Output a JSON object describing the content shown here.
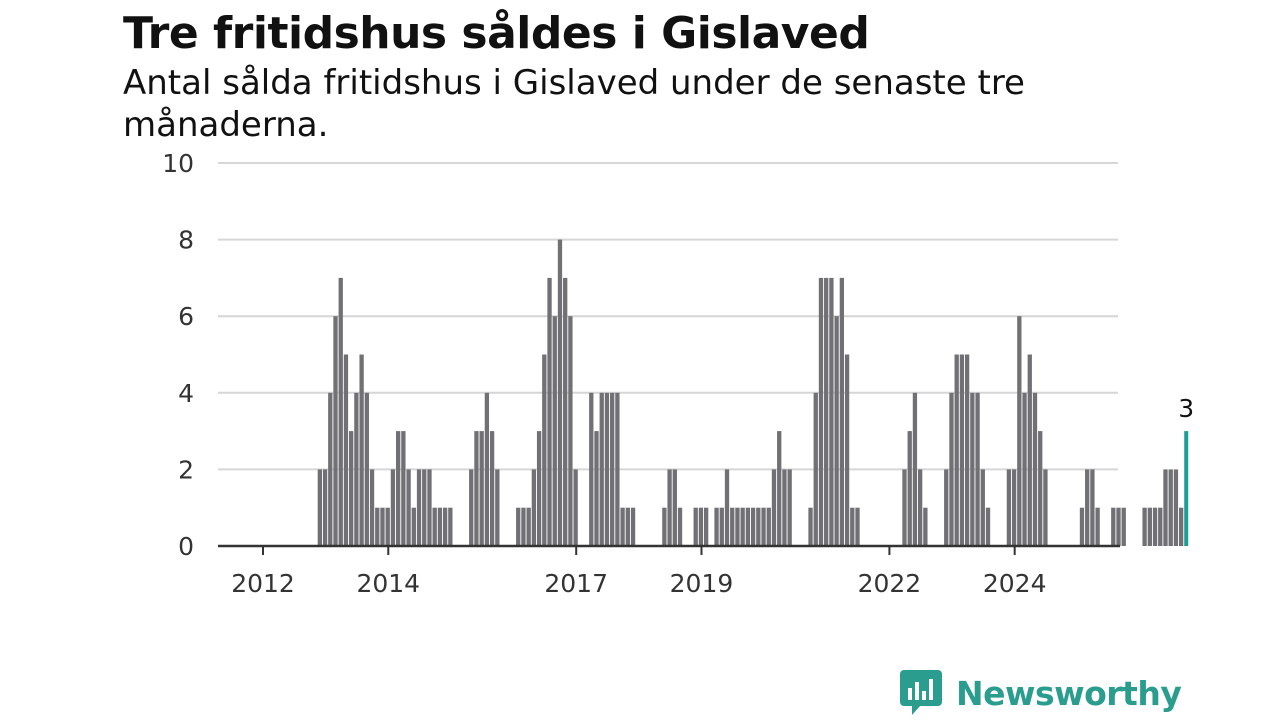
{
  "header": {
    "title": "Tre fritidshus såldes i Gislaved",
    "subtitle": "Antal sålda fritidshus i Gislaved under de senaste tre månaderna."
  },
  "brand": {
    "name": "Newsworthy",
    "color": "#2a9d8f"
  },
  "colors": {
    "bar": "#707075",
    "highlight": "#1a9e96",
    "grid": "#d6d6d6",
    "axis": "#333333"
  },
  "chart_data": {
    "type": "bar",
    "title": "Tre fritidshus såldes i Gislaved",
    "subtitle": "Antal sålda fritidshus i Gislaved under de senaste tre månaderna.",
    "xlabel": "",
    "ylabel": "",
    "ylim": [
      0,
      10
    ],
    "y_ticks": [
      0,
      2,
      4,
      6,
      8,
      10
    ],
    "x_ticks": [
      "2012",
      "2014",
      "2017",
      "2019",
      "2022",
      "2024"
    ],
    "grid": true,
    "series": [
      {
        "values": [
          0,
          0,
          0,
          0,
          0,
          0,
          0,
          0,
          0,
          0,
          2,
          2,
          4,
          6,
          7,
          5,
          3,
          4,
          5,
          4,
          2,
          1,
          1,
          1,
          2,
          3,
          3,
          2,
          1,
          2,
          2,
          2,
          1,
          1,
          1,
          1,
          0,
          0,
          0,
          2,
          3,
          3,
          4,
          3,
          2,
          0,
          0,
          0,
          1,
          1,
          1,
          2,
          3,
          5,
          7,
          6,
          8,
          7,
          6,
          2,
          0,
          0,
          4,
          3,
          4,
          4,
          4,
          4,
          1,
          1,
          1,
          0,
          0,
          0,
          0,
          0,
          1,
          2,
          2,
          1,
          0,
          0,
          1,
          1,
          1,
          0,
          1,
          1,
          2,
          1,
          1,
          1,
          1,
          1,
          1,
          1,
          1,
          2,
          3,
          2,
          2,
          0,
          0,
          0,
          1,
          4,
          7,
          7,
          7,
          6,
          7,
          5,
          1,
          1,
          0,
          0,
          0,
          0,
          0,
          0,
          0,
          0,
          2,
          3,
          4,
          2,
          1,
          0,
          0,
          0,
          2,
          4,
          5,
          5,
          5,
          4,
          4,
          2,
          1,
          0,
          0,
          0,
          2,
          2,
          6,
          4,
          5,
          4,
          3,
          2,
          0,
          0,
          0,
          0,
          0,
          0,
          1,
          2,
          2,
          1,
          0,
          0,
          1,
          1,
          1,
          0,
          0,
          0,
          1,
          1,
          1,
          1,
          2,
          2,
          2,
          1,
          3
        ]
      }
    ],
    "highlight": {
      "label": "3",
      "value": 3
    }
  }
}
